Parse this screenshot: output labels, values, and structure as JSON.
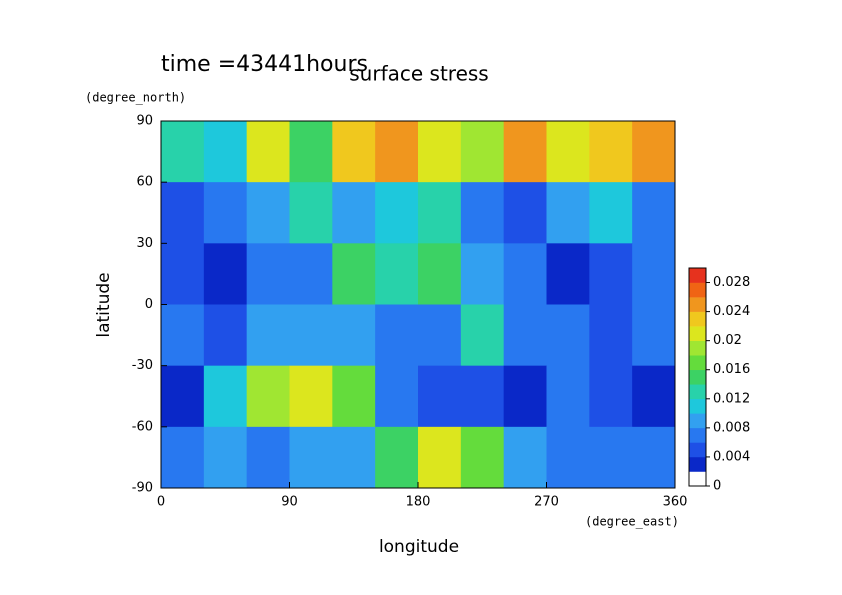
{
  "chart_data": {
    "type": "contour",
    "title": "surface stress",
    "annotation": "time =43441hours",
    "x_label": "longitude",
    "y_label": "latitude",
    "x_unit": "(degree_east)",
    "y_unit": "(degree_north)",
    "xlim": [
      0,
      360
    ],
    "xticks": [
      0,
      90,
      180,
      270,
      360
    ],
    "ylim": [
      -90,
      90
    ],
    "yticks": [
      -90,
      -60,
      -30,
      0,
      30,
      60,
      90
    ],
    "x": [
      15,
      45,
      75,
      105,
      135,
      165,
      195,
      225,
      255,
      285,
      315,
      345
    ],
    "y": [
      75,
      45,
      15,
      -15,
      -45,
      -75
    ],
    "z": [
      [
        0.012,
        0.01,
        0.02,
        0.014,
        0.022,
        0.024,
        0.02,
        0.018,
        0.024,
        0.02,
        0.022,
        0.024
      ],
      [
        0.004,
        0.006,
        0.008,
        0.012,
        0.008,
        0.01,
        0.012,
        0.006,
        0.004,
        0.008,
        0.01,
        0.006
      ],
      [
        0.004,
        0.002,
        0.006,
        0.006,
        0.014,
        0.012,
        0.014,
        0.008,
        0.006,
        0.002,
        0.004,
        0.006
      ],
      [
        0.006,
        0.004,
        0.008,
        0.008,
        0.008,
        0.006,
        0.006,
        0.012,
        0.006,
        0.006,
        0.004,
        0.006
      ],
      [
        0.002,
        0.01,
        0.018,
        0.02,
        0.016,
        0.006,
        0.004,
        0.004,
        0.002,
        0.006,
        0.004,
        0.002
      ],
      [
        0.006,
        0.008,
        0.006,
        0.008,
        0.008,
        0.014,
        0.02,
        0.016,
        0.008,
        0.006,
        0.006,
        0.006
      ]
    ],
    "colorbar": {
      "clim": [
        0,
        0.03
      ],
      "ticks": [
        0,
        0.004,
        0.008,
        0.012,
        0.016,
        0.02,
        0.024,
        0.028
      ],
      "colors": [
        "#ffffff",
        "#0a28c8",
        "#1e50e6",
        "#2878f0",
        "#32a0f0",
        "#1ec8dc",
        "#28d2aa",
        "#3cd264",
        "#64dc3c",
        "#a0e632",
        "#dce61e",
        "#f0c81e",
        "#f0961e",
        "#f06414",
        "#e6321e"
      ]
    }
  }
}
